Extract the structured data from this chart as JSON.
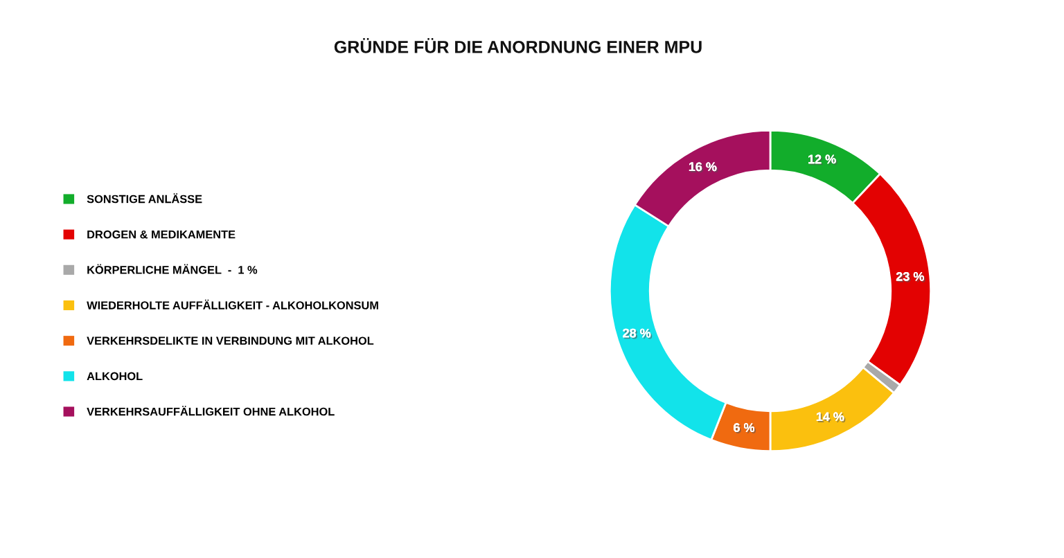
{
  "chart_data": {
    "type": "donut",
    "title": "GRÜNDE FÜR DIE ANORDNUNG EINER MPU",
    "categories": [
      "SONSTIGE ANLÄSSE",
      "DROGEN & MEDIKAMENTE",
      "KÖRPERLICHE MÄNGEL  -  1 %",
      "WIEDERHOLTE AUFFÄLLIGKEIT - ALKOHOLKONSUM",
      "VERKEHRSDELIKTE IN VERBINDUNG MIT ALKOHOL",
      "ALKOHOL",
      "VERKEHRSAUFFÄLLIGKEIT OHNE ALKOHOL"
    ],
    "values": [
      12,
      23,
      1,
      14,
      6,
      28,
      16
    ],
    "value_labels": [
      "12 %",
      "23 %",
      null,
      "14 %",
      "6 %",
      "28 %",
      "16 %"
    ],
    "colors": [
      "#12ad2b",
      "#e30202",
      "#a9a9a9",
      "#fbc00e",
      "#f06a10",
      "#12e3ea",
      "#a5105d"
    ],
    "legend": "left"
  }
}
